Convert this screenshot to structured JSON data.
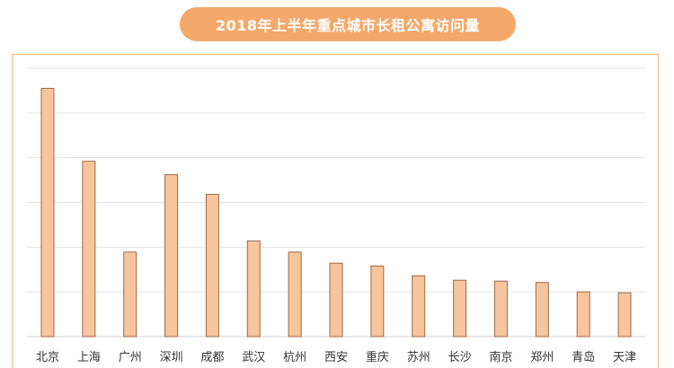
{
  "chart_data": {
    "type": "bar",
    "title": "2018年上半年重点城市长租公寓访问量",
    "categories": [
      "北京",
      "上海",
      "广州",
      "深圳",
      "成都",
      "武汉",
      "杭州",
      "西安",
      "重庆",
      "苏州",
      "长沙",
      "南京",
      "郑州",
      "青岛",
      "天津"
    ],
    "values": [
      5.55,
      3.92,
      1.89,
      3.62,
      3.18,
      2.14,
      1.89,
      1.64,
      1.58,
      1.36,
      1.26,
      1.24,
      1.21,
      1.0,
      0.98
    ],
    "ylim": [
      0,
      6
    ],
    "grid": true,
    "legend": "none",
    "xlabel": "",
    "ylabel": ""
  },
  "colors": {
    "title_bg": "#f4a86a",
    "bar_fill": "#f6c49d",
    "bar_stroke": "#a06a45",
    "frame": "#f3b27f"
  }
}
